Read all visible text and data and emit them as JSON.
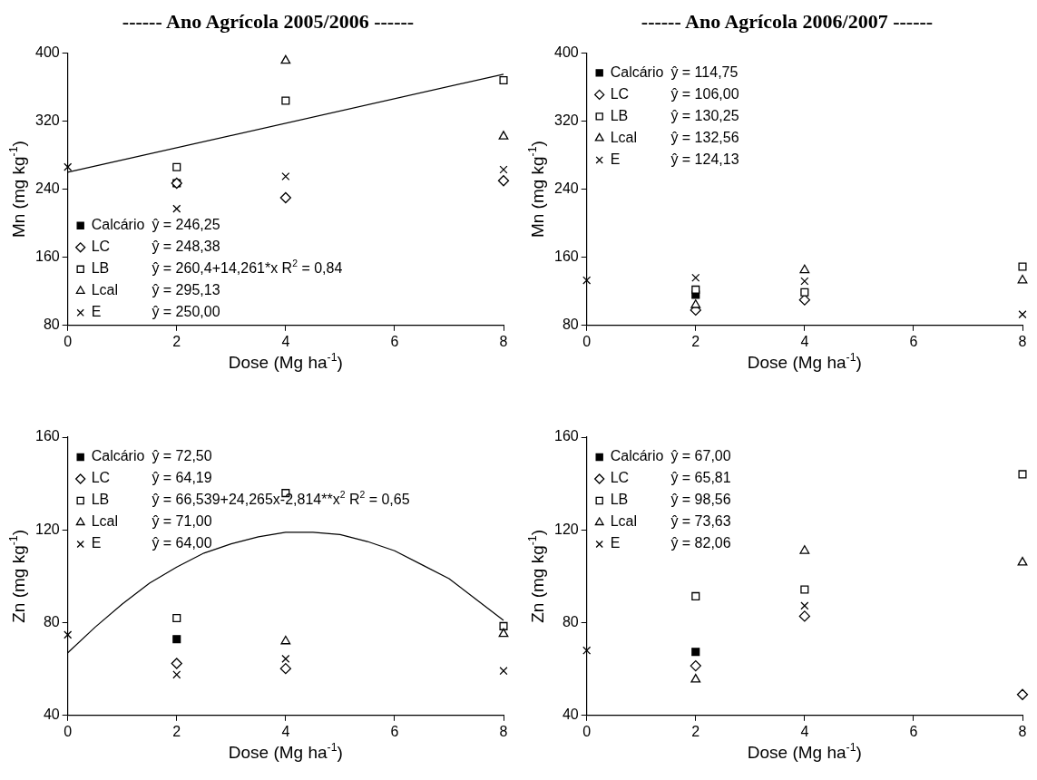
{
  "chart_data": [
    {
      "type": "scatter",
      "title": "------ Ano Agrícola 2005/2006 ------",
      "xlabel": "Dose (Mg ha$^{-1}$)",
      "ylabel": "Mn (mg kg$^{-1}$)",
      "xlim": [
        0,
        8
      ],
      "xticks": [
        0,
        2,
        4,
        6,
        8
      ],
      "ylim": [
        80,
        400
      ],
      "yticks": [
        80,
        160,
        240,
        320,
        400
      ],
      "legend": "bottom left",
      "series": [
        {
          "name": "Calcário",
          "color": "#000000",
          "marker": "square",
          "colors": [
            "#000000"
          ],
          "x": [
            2
          ],
          "values": [
            247
          ]
        },
        {
          "name": "LC",
          "color": "#000000",
          "marker": "diamond",
          "x": [
            2,
            4,
            8
          ],
          "values": [
            247,
            230,
            250
          ]
        },
        {
          "name": "LB",
          "color": "#000000",
          "marker": "square",
          "x": [
            2,
            4,
            8
          ],
          "values": [
            266,
            344,
            368
          ]
        },
        {
          "name": "Lcal",
          "color": "#000000",
          "marker": "triangle",
          "x": [
            4,
            8
          ],
          "values": [
            391,
            302
          ]
        },
        {
          "name": "E",
          "color": "#000000",
          "marker": "cross",
          "x": [
            0,
            2,
            4,
            8
          ],
          "values": [
            266,
            217,
            255,
            263
          ]
        },
        {
          "type": "line",
          "color": "#000000",
          "marker": "none",
          "x": [
            0,
            8
          ],
          "values": [
            260,
            375
          ]
        }
      ],
      "annotations": [
        "ŷ = 246,25",
        "ŷ = 248,38",
        "ŷ = 260,4+14,261*x R$^{2}$ = 0,84",
        "ŷ = 295,13",
        "ŷ = 250,00"
      ]
    },
    {
      "type": "scatter",
      "title": "------ Ano Agrícola 2006/2007 ------",
      "xlabel": "Dose (Mg ha$^{-1}$)",
      "ylabel": "Mn (mg kg$^{-1}$)",
      "xlim": [
        0,
        8
      ],
      "xticks": [
        0,
        2,
        4,
        6,
        8
      ],
      "ylim": [
        80,
        400
      ],
      "yticks": [
        80,
        160,
        240,
        320,
        400
      ],
      "legend": "top left",
      "series": [
        {
          "name": "Calcário",
          "color": "#000000",
          "marker": "square",
          "colors": [
            "#000000"
          ],
          "x": [
            2
          ],
          "values": [
            116
          ]
        },
        {
          "name": "LC",
          "color": "#000000",
          "marker": "diamond",
          "x": [
            2,
            4
          ],
          "values": [
            98,
            110
          ]
        },
        {
          "name": "LB",
          "color": "#000000",
          "marker": "square",
          "x": [
            2,
            4,
            8
          ],
          "values": [
            122,
            119,
            149
          ]
        },
        {
          "name": "Lcal",
          "color": "#000000",
          "marker": "triangle",
          "x": [
            2,
            4,
            8
          ],
          "values": [
            104,
            145,
            133
          ]
        },
        {
          "name": "E",
          "color": "#000000",
          "marker": "cross",
          "x": [
            0,
            2,
            4,
            8
          ],
          "values": [
            133,
            136,
            132,
            93
          ]
        }
      ],
      "annotations": [
        "ŷ = 114,75",
        "ŷ = 106,00",
        "ŷ = 130,25",
        "ŷ = 132,56",
        "ŷ = 124,13"
      ]
    },
    {
      "type": "scatter",
      "xlabel": "Dose (Mg ha$^{-1}$)",
      "ylabel": "Zn (mg kg$^{-1}$)",
      "xlim": [
        0,
        8
      ],
      "xticks": [
        0,
        2,
        4,
        6,
        8
      ],
      "ylim": [
        40,
        160
      ],
      "yticks": [
        40,
        80,
        120,
        160
      ],
      "legend": "top left",
      "series": [
        {
          "name": "Calcário",
          "color": "#000000",
          "marker": "square",
          "colors": [
            "#000000"
          ],
          "x": [
            2
          ],
          "values": [
            72.9
          ]
        },
        {
          "name": "LC",
          "color": "#000000",
          "marker": "diamond",
          "x": [
            2,
            4
          ],
          "values": [
            62.4,
            60.2
          ]
        },
        {
          "name": "LB",
          "color": "#000000",
          "marker": "square",
          "x": [
            2,
            4,
            8
          ],
          "values": [
            82,
            135.9,
            78.5
          ]
        },
        {
          "name": "Lcal",
          "color": "#000000",
          "marker": "triangle",
          "x": [
            4,
            8
          ],
          "values": [
            72,
            75.2
          ]
        },
        {
          "name": "E",
          "color": "#000000",
          "marker": "cross",
          "x": [
            0,
            2,
            4,
            8
          ],
          "values": [
            74.8,
            57.6,
            64.4,
            59.2
          ]
        },
        {
          "type": "line",
          "color": "#000000",
          "marker": "none",
          "x": [
            0,
            0.5,
            1,
            1.5,
            2,
            2.5,
            3,
            3.5,
            4,
            4.5,
            5,
            5.5,
            6,
            6.5,
            7,
            7.5,
            8
          ],
          "values": [
            67,
            78,
            88,
            97,
            104,
            110,
            114,
            117,
            119,
            119,
            118,
            115,
            111,
            105,
            99,
            90,
            81
          ]
        }
      ],
      "annotations": [
        "ŷ = 72,50",
        "ŷ = 64,19",
        "ŷ = 66,539+24,265x-2,814**x$^{2}$ R$^{2}$ = 0,65",
        "ŷ = 71,00",
        "ŷ = 64,00"
      ]
    },
    {
      "type": "scatter",
      "xlabel": "Dose (Mg ha$^{-1}$)",
      "ylabel": "Zn (mg kg$^{-1}$)",
      "xlim": [
        0,
        8
      ],
      "xticks": [
        0,
        2,
        4,
        6,
        8
      ],
      "ylim": [
        40,
        160
      ],
      "yticks": [
        40,
        80,
        120,
        160
      ],
      "legend": "top left",
      "series": [
        {
          "name": "Calcário",
          "color": "#000000",
          "marker": "square",
          "colors": [
            "#000000"
          ],
          "x": [
            2
          ],
          "values": [
            67.4
          ]
        },
        {
          "name": "LC",
          "color": "#000000",
          "marker": "diamond",
          "x": [
            2,
            4,
            8
          ],
          "values": [
            61.4,
            82.8,
            49
          ]
        },
        {
          "name": "LB",
          "color": "#000000",
          "marker": "square",
          "x": [
            2,
            4,
            8
          ],
          "values": [
            91.4,
            94.3,
            144
          ]
        },
        {
          "name": "Lcal",
          "color": "#000000",
          "marker": "triangle",
          "x": [
            2,
            4,
            8
          ],
          "values": [
            55.5,
            111,
            106
          ]
        },
        {
          "name": "E",
          "color": "#000000",
          "marker": "cross",
          "x": [
            0,
            2,
            4
          ],
          "values": [
            68,
            67.4,
            87.3
          ]
        }
      ],
      "annotations": [
        "ŷ = 67,00",
        "ŷ = 65,81",
        "ŷ = 98,56",
        "ŷ = 73,63",
        "ŷ = 82,06"
      ]
    }
  ]
}
